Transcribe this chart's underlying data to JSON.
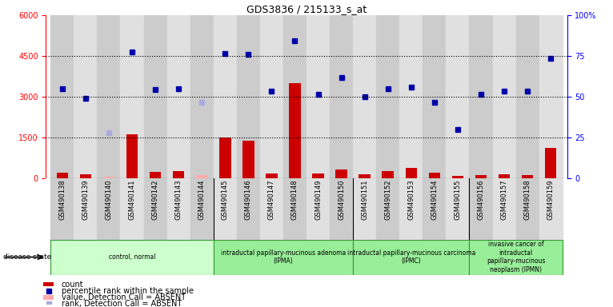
{
  "title": "GDS3836 / 215133_s_at",
  "samples": [
    "GSM490138",
    "GSM490139",
    "GSM490140",
    "GSM490141",
    "GSM490142",
    "GSM490143",
    "GSM490144",
    "GSM490145",
    "GSM490146",
    "GSM490147",
    "GSM490148",
    "GSM490149",
    "GSM490150",
    "GSM490151",
    "GSM490152",
    "GSM490153",
    "GSM490154",
    "GSM490155",
    "GSM490156",
    "GSM490157",
    "GSM490158",
    "GSM490159"
  ],
  "count_values": [
    200,
    130,
    50,
    1600,
    220,
    270,
    120,
    1500,
    1380,
    170,
    3500,
    170,
    330,
    130,
    270,
    380,
    200,
    90,
    120,
    150,
    100,
    1100
  ],
  "count_absent": [
    false,
    false,
    true,
    false,
    false,
    false,
    true,
    false,
    false,
    false,
    false,
    false,
    false,
    false,
    false,
    false,
    false,
    false,
    false,
    false,
    false,
    false
  ],
  "percentile_values": [
    3300,
    2950,
    null,
    4650,
    3250,
    3300,
    null,
    4600,
    4550,
    3200,
    5050,
    3100,
    3700,
    3000,
    3300,
    3350,
    2800,
    1780,
    3100,
    3200,
    3200,
    4400
  ],
  "rank_absent": [
    false,
    false,
    true,
    false,
    false,
    false,
    true,
    false,
    false,
    false,
    false,
    false,
    false,
    false,
    false,
    false,
    false,
    false,
    false,
    false,
    false,
    false
  ],
  "absent_rank_actual": [
    null,
    null,
    1680,
    null,
    null,
    null,
    2780,
    null,
    null,
    null,
    null,
    null,
    null,
    null,
    null,
    null,
    null,
    null,
    null,
    null,
    null,
    null
  ],
  "ylim": [
    0,
    6000
  ],
  "yticks_left": [
    0,
    1500,
    3000,
    4500,
    6000
  ],
  "ytick_labels_right": [
    "0",
    "25",
    "50",
    "75",
    "100%"
  ],
  "groups": [
    {
      "label": "control, normal",
      "start": 0,
      "end": 6,
      "color": "#ccffcc"
    },
    {
      "label": "intraductal papillary-mucinous adenoma\n(IPMA)",
      "start": 7,
      "end": 12,
      "color": "#99ee99"
    },
    {
      "label": "intraductal papillary-mucinous carcinoma\n(IPMC)",
      "start": 13,
      "end": 17,
      "color": "#99ee99"
    },
    {
      "label": "invasive cancer of\nintraductal\npapillary-mucinous\nneoplasm (IPMN)",
      "start": 18,
      "end": 21,
      "color": "#99ee99"
    }
  ],
  "bar_color": "#cc0000",
  "absent_bar_color": "#ffaaaa",
  "dot_color": "#0000aa",
  "absent_dot_color": "#aaaadd",
  "col_color_even": "#cccccc",
  "col_color_odd": "#e0e0e0"
}
